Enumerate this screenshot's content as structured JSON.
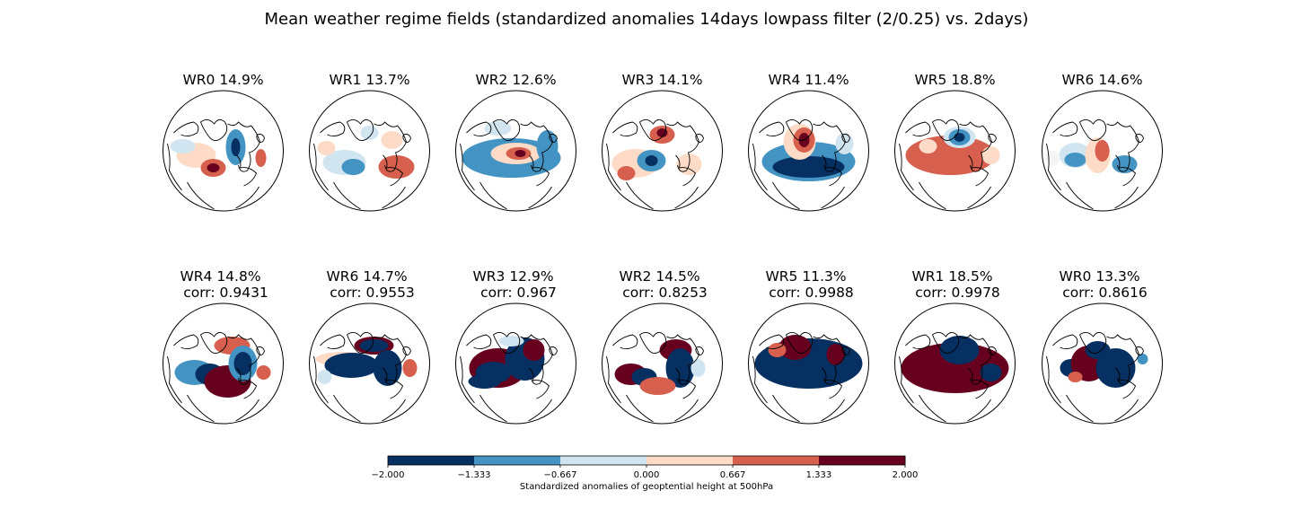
{
  "figure_title": "Mean weather regime fields (standardized anomalies 14days lowpass filter (2/0.25) vs. 2days)",
  "chart_data": {
    "type": "heatmap",
    "title": "Mean weather regime fields (standardized anomalies 14days lowpass filter (2/0.25) vs. 2days)",
    "map_projection": "orthographic (north polar)",
    "rows": [
      {
        "panels": [
          {
            "regime": "WR0",
            "frequency_pct": 14.9,
            "label": "WR0 14.9%",
            "corr_label": ""
          },
          {
            "regime": "WR1",
            "frequency_pct": 13.7,
            "label": "WR1 13.7%",
            "corr_label": ""
          },
          {
            "regime": "WR2",
            "frequency_pct": 12.6,
            "label": "WR2 12.6%",
            "corr_label": ""
          },
          {
            "regime": "WR3",
            "frequency_pct": 14.1,
            "label": "WR3 14.1%",
            "corr_label": ""
          },
          {
            "regime": "WR4",
            "frequency_pct": 11.4,
            "label": "WR4 11.4%",
            "corr_label": ""
          },
          {
            "regime": "WR5",
            "frequency_pct": 18.8,
            "label": "WR5 18.8%",
            "corr_label": ""
          },
          {
            "regime": "WR6",
            "frequency_pct": 14.6,
            "label": "WR6 14.6%",
            "corr_label": ""
          }
        ]
      },
      {
        "panels": [
          {
            "regime": "WR4",
            "frequency_pct": 14.8,
            "corr": 0.9431,
            "label": "WR4 14.8%",
            "corr_label": "corr: 0.9431"
          },
          {
            "regime": "WR6",
            "frequency_pct": 14.7,
            "corr": 0.9553,
            "label": "WR6 14.7%",
            "corr_label": "corr: 0.9553"
          },
          {
            "regime": "WR3",
            "frequency_pct": 12.9,
            "corr": 0.967,
            "label": "WR3 12.9%",
            "corr_label": "corr: 0.967"
          },
          {
            "regime": "WR2",
            "frequency_pct": 14.5,
            "corr": 0.8253,
            "label": "WR2 14.5%",
            "corr_label": "corr: 0.8253"
          },
          {
            "regime": "WR5",
            "frequency_pct": 11.3,
            "corr": 0.9988,
            "label": "WR5 11.3%",
            "corr_label": "corr: 0.9988"
          },
          {
            "regime": "WR1",
            "frequency_pct": 18.5,
            "corr": 0.9978,
            "label": "WR1 18.5%",
            "corr_label": "corr: 0.9978"
          },
          {
            "regime": "WR0",
            "frequency_pct": 13.3,
            "corr": 0.8616,
            "label": "WR0 13.3%",
            "corr_label": "corr: 0.8616"
          }
        ]
      }
    ],
    "colorbar": {
      "label": "Standardized anomalies of geoptential height at 500hPa",
      "min": -2.0,
      "max": 2.0,
      "ticks": [
        -2.0,
        -1.333,
        -0.667,
        0.0,
        0.667,
        1.333,
        2.0
      ],
      "tick_labels": [
        "−2.000",
        "−1.333",
        "−0.667",
        "0.000",
        "0.667",
        "1.333",
        "2.000"
      ],
      "colors": [
        "#053061",
        "#4393c3",
        "#d1e5f0",
        "#fddbc7",
        "#d6604d",
        "#67001f"
      ]
    }
  }
}
